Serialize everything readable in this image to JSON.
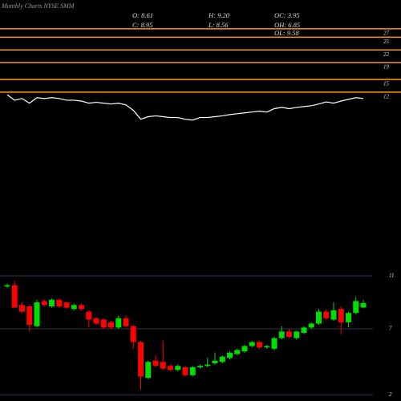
{
  "chart_data": {
    "type": "candlestick",
    "title": "Monthly Charts NYSE SMM",
    "stats": [
      "O: 8.61",
      "H: 9.20",
      "OC: 3.95",
      "C: 8.95",
      "L: 8.56",
      "OH: 6.85",
      "OL: 9.58"
    ],
    "open": [
      10.2,
      10.3,
      8.8,
      8.7,
      7.2,
      9.1,
      8.7,
      9.2,
      9.0,
      8.5,
      8.8,
      8.3,
      7.8,
      7.7,
      7.5,
      7.1,
      7.8,
      7.2,
      6.0,
      3.3,
      4.6,
      4.5,
      4.2,
      3.9,
      4.1,
      3.5,
      4.1,
      4.2,
      4.4,
      4.5,
      4.8,
      5.1,
      5.3,
      5.7,
      6.0,
      5.6,
      5.5,
      6.3,
      6.8,
      6.3,
      6.7,
      7.1,
      7.4,
      8.3,
      7.7,
      8.5,
      7.5,
      8.2,
      8.61
    ],
    "high": [
      10.4,
      10.6,
      9.0,
      8.8,
      9.2,
      9.2,
      9.3,
      9.3,
      9.1,
      8.9,
      8.9,
      8.4,
      7.9,
      7.8,
      7.6,
      8.0,
      8.0,
      7.3,
      6.1,
      4.6,
      5.0,
      6.1,
      4.3,
      4.3,
      4.2,
      4.2,
      4.3,
      4.8,
      5.2,
      5.0,
      5.3,
      5.5,
      5.8,
      6.1,
      6.1,
      5.8,
      6.4,
      7.2,
      7.0,
      6.9,
      7.2,
      7.5,
      8.5,
      8.5,
      9.0,
      8.7,
      8.3,
      9.4,
      9.2
    ],
    "low": [
      10.1,
      8.6,
      8.2,
      6.8,
      7.1,
      8.7,
      8.6,
      8.6,
      8.5,
      8.4,
      8.4,
      7.1,
      7.3,
      7.0,
      7.0,
      7.0,
      7.1,
      5.5,
      2.4,
      3.2,
      4.1,
      3.9,
      3.8,
      3.8,
      3.4,
      3.4,
      4.0,
      4.1,
      4.3,
      4.4,
      4.7,
      5.0,
      5.2,
      5.6,
      5.5,
      5.5,
      5.4,
      6.2,
      6.3,
      6.2,
      6.6,
      7.0,
      7.3,
      7.7,
      7.6,
      6.6,
      7.1,
      8.1,
      8.56
    ],
    "close": [
      10.3,
      8.6,
      8.3,
      7.3,
      9.0,
      8.8,
      9.2,
      8.7,
      8.6,
      8.8,
      8.5,
      7.7,
      7.4,
      7.1,
      7.1,
      7.8,
      7.2,
      6.0,
      3.4,
      4.5,
      4.2,
      4.0,
      3.9,
      4.2,
      3.5,
      4.1,
      4.2,
      4.3,
      4.6,
      4.9,
      5.2,
      5.4,
      5.7,
      6.0,
      5.6,
      5.7,
      6.3,
      6.8,
      6.4,
      6.8,
      7.1,
      7.4,
      8.3,
      7.8,
      8.4,
      7.5,
      8.2,
      9.1,
      8.95
    ],
    "up_color": "#00dd00",
    "down_color": "#ff0000",
    "ylim": [
      1.55,
      11.85
    ],
    "yticks": [
      2,
      7,
      11
    ],
    "levels": [
      27,
      25,
      22,
      19,
      15,
      12
    ],
    "level_color": "#ff9900",
    "upper_ylim": [
      4.4,
      33.8
    ],
    "line": {
      "color": "#ffffff",
      "values": [
        11.4,
        10.1,
        10.5,
        9.4,
        10.7,
        10.5,
        10.7,
        10.5,
        10.1,
        10.1,
        9.9,
        9.4,
        9.6,
        9.4,
        9.2,
        9.4,
        9.0,
        7.7,
        5.6,
        6.2,
        6.4,
        6.2,
        6.0,
        6.0,
        5.6,
        5.4,
        6.0,
        6.0,
        6.2,
        6.4,
        6.7,
        6.9,
        7.1,
        7.3,
        7.5,
        7.3,
        8.1,
        8.4,
        8.1,
        8.4,
        8.6,
        8.8,
        9.2,
        9.7,
        9.4,
        9.9,
        10.3,
        10.7,
        10.5
      ]
    }
  }
}
